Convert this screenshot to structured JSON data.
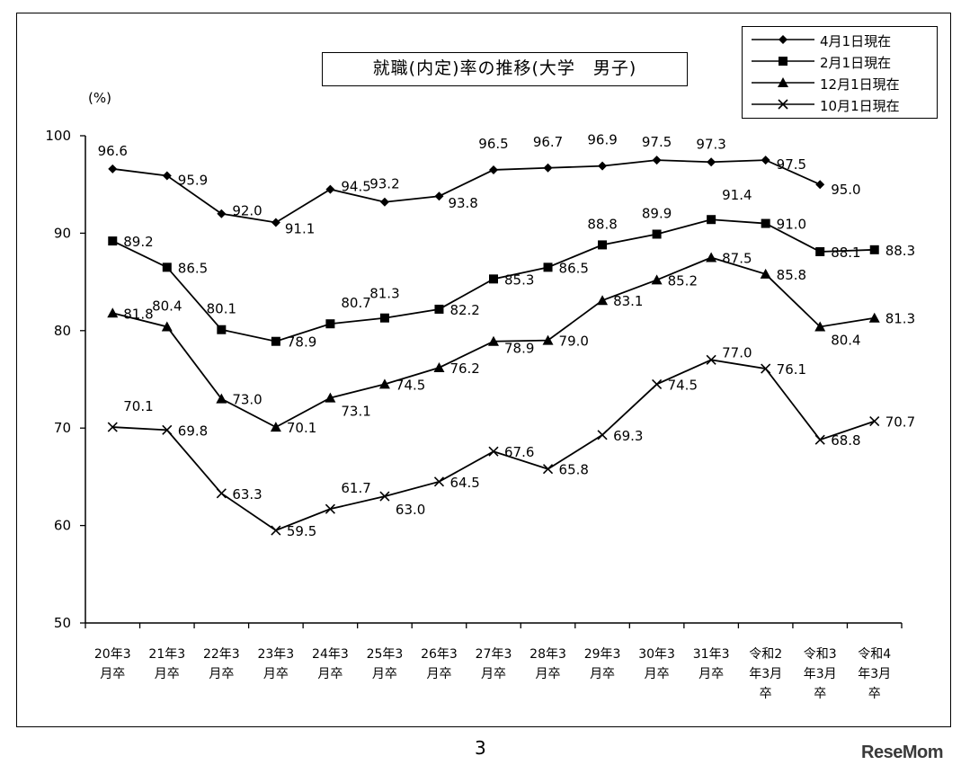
{
  "chart_data": {
    "type": "line",
    "title": "就職(内定)率の推移(大学　男子)",
    "ylabel": "(%)",
    "ylim": [
      50,
      100
    ],
    "yticks": [
      50,
      60,
      70,
      80,
      90,
      100
    ],
    "grid": false,
    "legend_position": "top-right",
    "categories": [
      [
        "20年3",
        "月卒"
      ],
      [
        "21年3",
        "月卒"
      ],
      [
        "22年3",
        "月卒"
      ],
      [
        "23年3",
        "月卒"
      ],
      [
        "24年3",
        "月卒"
      ],
      [
        "25年3",
        "月卒"
      ],
      [
        "26年3",
        "月卒"
      ],
      [
        "27年3",
        "月卒"
      ],
      [
        "28年3",
        "月卒"
      ],
      [
        "29年3",
        "月卒"
      ],
      [
        "30年3",
        "月卒"
      ],
      [
        "31年3",
        "月卒"
      ],
      [
        "令和2",
        "年3月",
        "卒"
      ],
      [
        "令和3",
        "年3月",
        "卒"
      ],
      [
        "令和4",
        "年3月",
        "卒"
      ]
    ],
    "series": [
      {
        "name": "4月1日現在",
        "marker": "diamond",
        "values": [
          96.6,
          95.9,
          92.0,
          91.1,
          94.5,
          93.2,
          93.8,
          96.5,
          96.7,
          96.9,
          97.5,
          97.3,
          97.5,
          95.0,
          null
        ],
        "labels": [
          "96.6",
          "95.9",
          "92.0",
          "91.1",
          "94.5",
          "93.2",
          "93.8",
          "96.5",
          "96.7",
          "96.9",
          "97.5",
          "97.3",
          "97.5",
          "95.0",
          null
        ]
      },
      {
        "name": "2月1日現在",
        "marker": "square",
        "values": [
          89.2,
          86.5,
          80.1,
          78.9,
          80.7,
          81.3,
          82.2,
          85.3,
          86.5,
          88.8,
          89.9,
          91.4,
          91.0,
          88.1,
          88.3
        ],
        "labels": [
          "89.2",
          "86.5",
          "80.1",
          "78.9",
          "80.7",
          "81.3",
          "82.2",
          "85.3",
          "86.5",
          "88.8",
          "89.9",
          "91.4",
          "91.0",
          "88.1",
          "88.3"
        ]
      },
      {
        "name": "12月1日現在",
        "marker": "triangle",
        "values": [
          81.8,
          80.4,
          73.0,
          70.1,
          73.1,
          74.5,
          76.2,
          78.9,
          79.0,
          83.1,
          85.2,
          87.5,
          85.8,
          80.4,
          81.3
        ],
        "labels": [
          "81.8",
          "80.4",
          "73.0",
          "70.1",
          "73.1",
          "74.5",
          "76.2",
          "78.9",
          "79.0",
          "83.1",
          "85.2",
          "87.5",
          "85.8",
          "80.4",
          "81.3"
        ]
      },
      {
        "name": "10月1日現在",
        "marker": "x",
        "values": [
          70.1,
          69.8,
          63.3,
          59.5,
          61.7,
          63.0,
          64.5,
          67.6,
          65.8,
          69.3,
          74.5,
          77.0,
          76.1,
          68.8,
          70.7
        ],
        "labels": [
          "70.1",
          "69.8",
          "63.3",
          "59.5",
          "61.7",
          "63.0",
          "64.5",
          "67.6",
          "65.8",
          "69.3",
          "74.5",
          "77.0",
          "76.1",
          "68.8",
          "70.7"
        ]
      }
    ]
  },
  "page": {
    "number": "3",
    "watermark": "ReseMom"
  }
}
